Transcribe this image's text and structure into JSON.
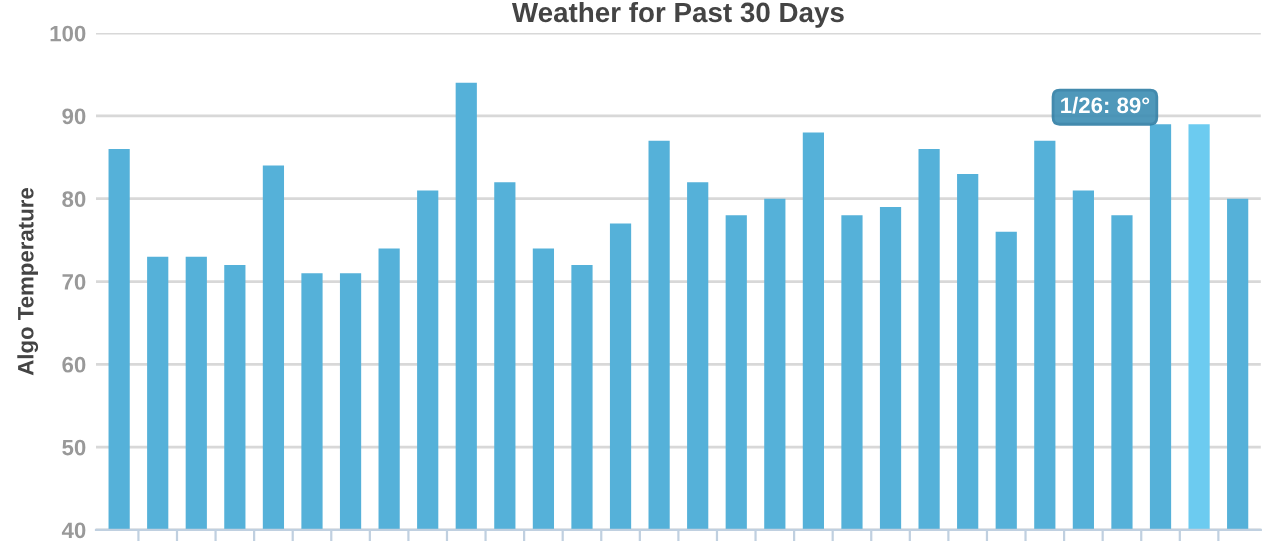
{
  "chart_data": {
    "type": "bar",
    "title": "Weather for Past 30 Days",
    "ylabel": "Algo Temperature",
    "categories": [
      null,
      null,
      null,
      null,
      null,
      null,
      null,
      null,
      null,
      null,
      null,
      null,
      null,
      null,
      null,
      null,
      null,
      null,
      null,
      null,
      null,
      null,
      null,
      null,
      null,
      null,
      null,
      null,
      null,
      null
    ],
    "values": [
      86,
      73,
      73,
      72,
      84,
      71,
      71,
      74,
      81,
      94,
      82,
      74,
      72,
      77,
      87,
      82,
      78,
      80,
      88,
      78,
      79,
      86,
      83,
      76,
      87,
      81,
      78,
      89,
      89,
      80
    ],
    "colors": [
      "#55b1d9",
      "#55b1d9",
      "#55b1d9",
      "#55b1d9",
      "#55b1d9",
      "#55b1d9",
      "#55b1d9",
      "#55b1d9",
      "#55b1d9",
      "#55b1d9",
      "#55b1d9",
      "#55b1d9",
      "#55b1d9",
      "#55b1d9",
      "#55b1d9",
      "#55b1d9",
      "#55b1d9",
      "#55b1d9",
      "#55b1d9",
      "#55b1d9",
      "#55b1d9",
      "#55b1d9",
      "#55b1d9",
      "#55b1d9",
      "#55b1d9",
      "#55b1d9",
      "#55b1d9",
      "#55b1d9",
      "#6ccbf0",
      "#55b1d9"
    ],
    "ylim": [
      40,
      100
    ],
    "yticks": [
      40,
      50,
      60,
      70,
      80,
      90,
      100
    ],
    "grid": "y",
    "annotations": [
      "1/26: 89°"
    ]
  }
}
